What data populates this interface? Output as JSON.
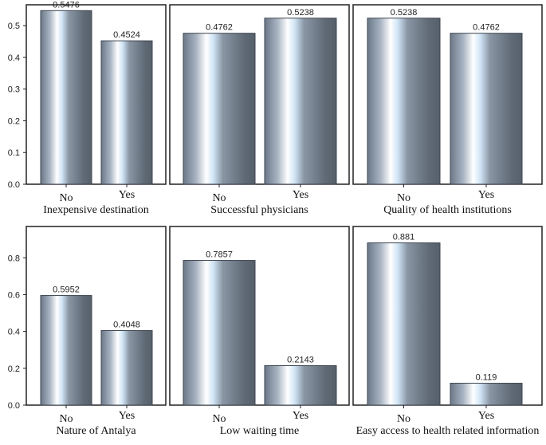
{
  "chart_data": [
    {
      "type": "bar",
      "title": "",
      "xlabel": "Inexpensive destination",
      "categories": [
        "No",
        "Yes"
      ],
      "values": [
        0.5476,
        0.4524
      ],
      "value_labels": [
        "0.5476",
        "0.4524"
      ],
      "ylim": [
        0,
        0.566
      ],
      "yticks": [
        "0.0",
        "0.1",
        "0.2",
        "0.3",
        "0.4",
        "0.5"
      ],
      "grid": false
    },
    {
      "type": "bar",
      "title": "",
      "xlabel": "Successful physicians",
      "categories": [
        "No",
        "Yes"
      ],
      "values": [
        0.4762,
        0.5238
      ],
      "value_labels": [
        "0.4762",
        "0.5238"
      ],
      "ylim": [
        0,
        0.566
      ],
      "grid": false
    },
    {
      "type": "bar",
      "title": "",
      "xlabel": "Quality of health institutions",
      "categories": [
        "No",
        "Yes"
      ],
      "values": [
        0.5238,
        0.4762
      ],
      "value_labels": [
        "0.5238",
        "0.4762"
      ],
      "ylim": [
        0,
        0.566
      ],
      "grid": false
    },
    {
      "type": "bar",
      "title": "",
      "xlabel": "Nature of Antalya",
      "categories": [
        "No",
        "Yes"
      ],
      "values": [
        0.5952,
        0.4048
      ],
      "value_labels": [
        "0.5952",
        "0.4048"
      ],
      "ylim": [
        0,
        0.97
      ],
      "yticks": [
        "0.0",
        "0.2",
        "0.4",
        "0.6",
        "0.8"
      ],
      "grid": false
    },
    {
      "type": "bar",
      "title": "",
      "xlabel": "Low waiting time",
      "categories": [
        "No",
        "Yes"
      ],
      "values": [
        0.7857,
        0.2143
      ],
      "value_labels": [
        "0.7857",
        "0.2143"
      ],
      "ylim": [
        0,
        0.97
      ],
      "grid": false
    },
    {
      "type": "bar",
      "title": "",
      "xlabel": "Easy access to health related information",
      "categories": [
        "No",
        "Yes"
      ],
      "values": [
        0.881,
        0.119
      ],
      "value_labels": [
        "0.881",
        "0.119"
      ],
      "ylim": [
        0,
        0.97
      ],
      "grid": false
    }
  ],
  "colors": {
    "bar_dark": "#5b6672",
    "bar_light": "#ffffff",
    "frame": "#222222"
  }
}
